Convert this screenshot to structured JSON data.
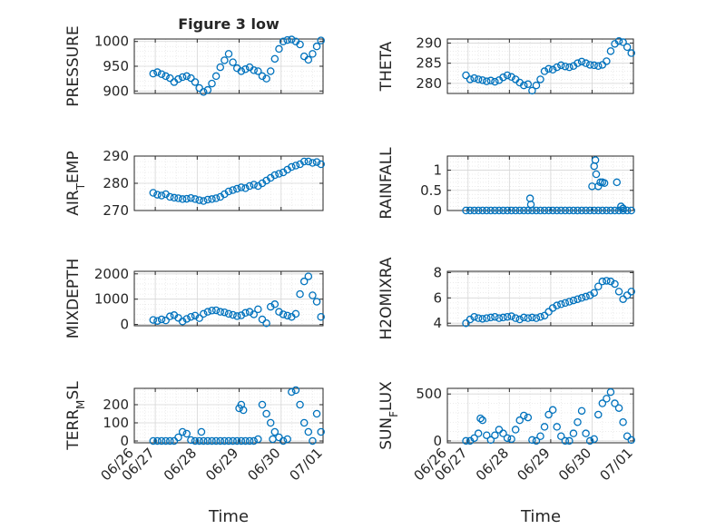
{
  "figure": {
    "title": "Figure 3 low",
    "xlabel": "Time"
  },
  "colors": {
    "marker": "#0072BD",
    "axis": "#262626",
    "grid": "#dfdfdf"
  },
  "chart_data": [
    {
      "type": "scatter",
      "ylabel": "PRESSURE",
      "ylim": [
        895,
        1005
      ],
      "yticks": [
        "900",
        "950",
        "1000"
      ],
      "ytick_values": [
        900,
        950,
        1000
      ],
      "xlim": [
        "06/26 12:00",
        "07/01"
      ],
      "xticks": [
        "06/27",
        "06/28",
        "06/29",
        "06/30",
        "07/01"
      ],
      "grid": true,
      "x": [
        0.45,
        0.55,
        0.65,
        0.75,
        0.85,
        0.95,
        1.05,
        1.15,
        1.25,
        1.35,
        1.45,
        1.55,
        1.65,
        1.75,
        1.85,
        1.95,
        2.05,
        2.15,
        2.25,
        2.35,
        2.45,
        2.55,
        2.65,
        2.75,
        2.85,
        2.95,
        3.05,
        3.15,
        3.25,
        3.35,
        3.45,
        3.55,
        3.65,
        3.75,
        3.85,
        3.95,
        4.05,
        4.15,
        4.25,
        4.35,
        4.45
      ],
      "y": [
        935,
        938,
        934,
        930,
        926,
        918,
        924,
        928,
        930,
        926,
        918,
        906,
        898,
        902,
        915,
        930,
        948,
        962,
        975,
        958,
        946,
        940,
        944,
        948,
        942,
        940,
        930,
        925,
        940,
        965,
        985,
        1000,
        1003,
        1004,
        1000,
        994,
        970,
        963,
        975,
        990,
        1002
      ],
      "series_name": "PRESSURE"
    },
    {
      "type": "scatter",
      "ylabel": "THETA",
      "ylim": [
        277.5,
        291
      ],
      "yticks": [
        "280",
        "285",
        "290"
      ],
      "ytick_values": [
        280,
        285,
        290
      ],
      "xlim": [
        "06/26 12:00",
        "07/01"
      ],
      "xticks": [
        "06/27",
        "06/28",
        "06/29",
        "06/30",
        "07/01"
      ],
      "grid": true,
      "x": [
        0.45,
        0.55,
        0.65,
        0.75,
        0.85,
        0.95,
        1.05,
        1.15,
        1.25,
        1.35,
        1.45,
        1.55,
        1.65,
        1.75,
        1.85,
        1.95,
        2.05,
        2.15,
        2.25,
        2.35,
        2.45,
        2.55,
        2.65,
        2.75,
        2.85,
        2.95,
        3.05,
        3.15,
        3.25,
        3.35,
        3.45,
        3.55,
        3.65,
        3.75,
        3.85,
        3.95,
        4.05,
        4.15,
        4.25,
        4.35,
        4.45
      ],
      "y": [
        282,
        281,
        281.3,
        281,
        280.8,
        280.5,
        280.7,
        280.4,
        280.8,
        281.5,
        282,
        281.6,
        281,
        280.2,
        279.5,
        279.8,
        278.2,
        279.5,
        281,
        283,
        283.6,
        283.4,
        284,
        284.5,
        284.2,
        284,
        284.3,
        285,
        285.4,
        285,
        284.6,
        284.5,
        284.3,
        284.6,
        285.5,
        288,
        289.8,
        290.5,
        290.2,
        289,
        287.5
      ]
    },
    {
      "type": "scatter",
      "ylabel": "AIR_TEMP",
      "ylim": [
        270,
        290
      ],
      "yticks": [
        "270",
        "280",
        "290"
      ],
      "ytick_values": [
        270,
        280,
        290
      ],
      "xlim": [
        "06/26 12:00",
        "07/01"
      ],
      "xticks": [
        "06/27",
        "06/28",
        "06/29",
        "06/30",
        "07/01"
      ],
      "grid": true,
      "x": [
        0.45,
        0.55,
        0.65,
        0.75,
        0.85,
        0.95,
        1.05,
        1.15,
        1.25,
        1.35,
        1.45,
        1.55,
        1.65,
        1.75,
        1.85,
        1.95,
        2.05,
        2.15,
        2.25,
        2.35,
        2.45,
        2.55,
        2.65,
        2.75,
        2.85,
        2.95,
        3.05,
        3.15,
        3.25,
        3.35,
        3.45,
        3.55,
        3.65,
        3.75,
        3.85,
        3.95,
        4.05,
        4.15,
        4.25,
        4.35,
        4.45
      ],
      "y": [
        276.5,
        275.8,
        275.5,
        276,
        275,
        274.7,
        274.5,
        274.2,
        274.3,
        274.6,
        274.2,
        273.8,
        273.5,
        274,
        274.2,
        274.5,
        275,
        276,
        277,
        277.5,
        278,
        278.5,
        278.2,
        279,
        279.5,
        279,
        280,
        281,
        282,
        283,
        283.5,
        284,
        285,
        286,
        286.5,
        287,
        288,
        288,
        287.5,
        287.8,
        287
      ]
    },
    {
      "type": "scatter",
      "ylabel": "RAINFALL",
      "ylim": [
        0,
        1.35
      ],
      "yticks": [
        "0",
        "0.5",
        "1"
      ],
      "ytick_values": [
        0,
        0.5,
        1
      ],
      "xlim": [
        "06/26 12:00",
        "07/01"
      ],
      "xticks": [
        "06/27",
        "06/28",
        "06/29",
        "06/30",
        "07/01"
      ],
      "grid": true,
      "x": [
        0.45,
        0.55,
        0.65,
        0.75,
        0.85,
        0.95,
        1.05,
        1.15,
        1.25,
        1.35,
        1.45,
        1.55,
        1.65,
        1.75,
        1.85,
        1.95,
        2.05,
        2.15,
        2.25,
        2.35,
        2.45,
        2.55,
        2.65,
        2.75,
        2.85,
        2.95,
        3.05,
        3.15,
        3.25,
        3.35,
        3.45,
        3.55,
        3.65,
        3.75,
        3.85,
        3.95,
        4.05,
        4.15,
        4.25,
        4.35,
        4.45,
        2.0,
        2.02,
        3.5,
        3.55,
        3.58,
        3.6,
        3.65,
        3.7,
        3.75,
        3.8,
        4.1,
        4.2,
        4.25
      ],
      "y": [
        0,
        0,
        0,
        0,
        0,
        0,
        0,
        0,
        0,
        0,
        0,
        0,
        0,
        0,
        0,
        0,
        0,
        0,
        0,
        0,
        0,
        0,
        0,
        0,
        0,
        0,
        0,
        0,
        0,
        0,
        0,
        0,
        0,
        0,
        0,
        0,
        0,
        0,
        0,
        0,
        0,
        0.3,
        0.15,
        0.6,
        1.1,
        1.25,
        0.9,
        0.6,
        0.7,
        0.7,
        0.68,
        0.7,
        0.1,
        0.05
      ]
    },
    {
      "type": "scatter",
      "ylabel": "MIXDEPTH",
      "ylim": [
        -50,
        2100
      ],
      "yticks": [
        "0",
        "1000",
        "2000"
      ],
      "ytick_values": [
        0,
        1000,
        2000
      ],
      "xlim": [
        "06/26 12:00",
        "07/01"
      ],
      "xticks": [
        "06/27",
        "06/28",
        "06/29",
        "06/30",
        "07/01"
      ],
      "grid": true,
      "x": [
        0.45,
        0.55,
        0.65,
        0.75,
        0.85,
        0.95,
        1.05,
        1.15,
        1.25,
        1.35,
        1.45,
        1.55,
        1.65,
        1.75,
        1.85,
        1.95,
        2.05,
        2.15,
        2.25,
        2.35,
        2.45,
        2.55,
        2.65,
        2.75,
        2.85,
        2.95,
        3.05,
        3.15,
        3.25,
        3.35,
        3.45,
        3.55,
        3.65,
        3.75,
        3.85,
        3.95,
        4.05,
        4.15,
        4.25,
        4.35,
        4.45
      ],
      "y": [
        180,
        140,
        200,
        160,
        320,
        370,
        260,
        120,
        220,
        300,
        350,
        250,
        420,
        500,
        550,
        560,
        500,
        480,
        420,
        380,
        330,
        360,
        460,
        500,
        400,
        600,
        200,
        50,
        700,
        800,
        500,
        400,
        350,
        300,
        420,
        1200,
        1700,
        1900,
        1150,
        900,
        300
      ]
    },
    {
      "type": "scatter",
      "ylabel": "H2OMIXRA",
      "ylim": [
        3.8,
        8.1
      ],
      "yticks": [
        "4",
        "6",
        "8"
      ],
      "ytick_values": [
        4,
        6,
        8
      ],
      "xlim": [
        "06/26 12:00",
        "07/01"
      ],
      "xticks": [
        "06/27",
        "06/28",
        "06/29",
        "06/30",
        "07/01"
      ],
      "grid": true,
      "x": [
        0.45,
        0.55,
        0.65,
        0.75,
        0.85,
        0.95,
        1.05,
        1.15,
        1.25,
        1.35,
        1.45,
        1.55,
        1.65,
        1.75,
        1.85,
        1.95,
        2.05,
        2.15,
        2.25,
        2.35,
        2.45,
        2.55,
        2.65,
        2.75,
        2.85,
        2.95,
        3.05,
        3.15,
        3.25,
        3.35,
        3.45,
        3.55,
        3.65,
        3.75,
        3.85,
        3.95,
        4.05,
        4.15,
        4.25,
        4.35,
        4.45
      ],
      "y": [
        4.0,
        4.3,
        4.5,
        4.4,
        4.35,
        4.4,
        4.45,
        4.5,
        4.4,
        4.45,
        4.5,
        4.55,
        4.4,
        4.3,
        4.45,
        4.4,
        4.45,
        4.4,
        4.5,
        4.6,
        4.9,
        5.2,
        5.4,
        5.5,
        5.6,
        5.7,
        5.8,
        5.9,
        6.0,
        6.1,
        6.2,
        6.4,
        6.9,
        7.3,
        7.35,
        7.3,
        7.1,
        6.5,
        5.9,
        6.2,
        6.5
      ]
    },
    {
      "type": "scatter",
      "ylabel": "TERR_MSL",
      "ylim": [
        -10,
        290
      ],
      "yticks": [
        "0",
        "100",
        "200"
      ],
      "ytick_values": [
        0,
        100,
        200
      ],
      "xlim": [
        "06/26 12:00",
        "07/01"
      ],
      "xticks": [
        "06/27",
        "06/28",
        "06/29",
        "06/30",
        "07/01"
      ],
      "grid": true,
      "x": [
        0.45,
        0.55,
        0.65,
        0.75,
        0.85,
        0.95,
        1.05,
        1.15,
        1.25,
        1.35,
        1.45,
        1.55,
        1.65,
        1.75,
        1.85,
        1.95,
        2.05,
        2.15,
        2.25,
        2.35,
        2.45,
        2.55,
        2.65,
        2.75,
        2.85,
        2.95,
        3.05,
        3.15,
        3.25,
        3.35,
        3.45,
        3.55,
        3.65,
        3.75,
        3.85,
        3.95,
        4.05,
        4.15,
        4.25,
        4.35,
        4.45,
        1.6,
        2.5,
        2.55,
        2.6,
        3.3
      ],
      "y": [
        0,
        0,
        0,
        0,
        0,
        0,
        20,
        50,
        40,
        5,
        0,
        0,
        0,
        0,
        0,
        0,
        0,
        0,
        0,
        0,
        0,
        0,
        0,
        0,
        0,
        10,
        200,
        150,
        100,
        50,
        20,
        0,
        10,
        270,
        280,
        200,
        100,
        50,
        0,
        150,
        50,
        50,
        180,
        200,
        170,
        10
      ]
    },
    {
      "type": "scatter",
      "ylabel": "SUN_FLUX",
      "ylim": [
        -20,
        560
      ],
      "yticks": [
        "0",
        "500"
      ],
      "ytick_values": [
        0,
        500
      ],
      "xlim": [
        "06/26 12:00",
        "07/01"
      ],
      "xticks": [
        "06/27",
        "06/28",
        "06/29",
        "06/30",
        "07/01"
      ],
      "grid": true,
      "x": [
        0.45,
        0.55,
        0.65,
        0.75,
        0.8,
        0.85,
        0.95,
        1.05,
        1.15,
        1.25,
        1.35,
        1.45,
        1.55,
        1.65,
        1.75,
        1.85,
        1.95,
        2.05,
        2.15,
        2.25,
        2.35,
        2.45,
        2.55,
        2.65,
        2.75,
        2.85,
        2.95,
        3.05,
        3.15,
        3.25,
        3.35,
        3.45,
        3.55,
        3.65,
        3.75,
        3.85,
        3.95,
        4.05,
        4.15,
        4.25,
        4.35,
        4.45
      ],
      "y": [
        0,
        0,
        30,
        80,
        240,
        220,
        60,
        10,
        60,
        120,
        80,
        30,
        20,
        120,
        220,
        270,
        250,
        10,
        0,
        50,
        150,
        280,
        330,
        150,
        50,
        0,
        0,
        80,
        200,
        320,
        80,
        0,
        20,
        280,
        400,
        450,
        520,
        400,
        350,
        200,
        50,
        10
      ]
    }
  ]
}
